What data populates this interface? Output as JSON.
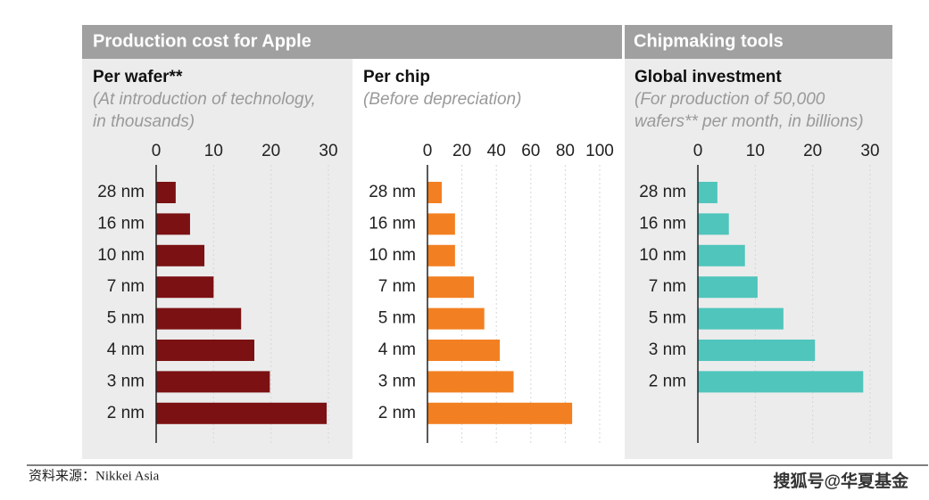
{
  "headers": [
    "Production cost for Apple",
    "Chipmaking tools"
  ],
  "chart_data": [
    {
      "type": "bar",
      "orientation": "horizontal",
      "title": "Per wafer**",
      "subtitle": [
        "(At introduction of technology,",
        "in thousands)"
      ],
      "categories": [
        "28 nm",
        "16 nm",
        "10 nm",
        "7 nm",
        "5 nm",
        "4 nm",
        "3 nm",
        "2 nm"
      ],
      "values": [
        3.4,
        5.9,
        8.4,
        10,
        14.8,
        17.1,
        19.8,
        29.7
      ],
      "color": "#7b1113",
      "xlim": [
        0,
        30
      ],
      "xticks": [
        0,
        10,
        20,
        30
      ],
      "grid": true
    },
    {
      "type": "bar",
      "orientation": "horizontal",
      "title": "Per chip",
      "subtitle": [
        "(Before depreciation)"
      ],
      "categories": [
        "28 nm",
        "16 nm",
        "10 nm",
        "7 nm",
        "5 nm",
        "4 nm",
        "3 nm",
        "2 nm"
      ],
      "values": [
        8.3,
        16,
        16,
        27,
        33,
        42,
        50,
        84
      ],
      "color": "#f28022",
      "xlim": [
        0,
        100
      ],
      "xticks": [
        0,
        20,
        40,
        60,
        80,
        100
      ],
      "grid": true
    },
    {
      "type": "bar",
      "orientation": "horizontal",
      "title": "Global investment",
      "subtitle": [
        "(For production of 50,000",
        "wafers** per month, in billions)"
      ],
      "categories": [
        "28 nm",
        "16 nm",
        "10 nm",
        "7 nm",
        "5 nm",
        "3 nm",
        "2 nm"
      ],
      "values": [
        3.4,
        5.4,
        8.2,
        10.4,
        14.9,
        20.4,
        28.8
      ],
      "color": "#4fc5bc",
      "xlim": [
        0,
        30
      ],
      "xticks": [
        0,
        10,
        20,
        30
      ],
      "grid": true
    }
  ],
  "footer": {
    "source": "资料来源：Nikkei Asia",
    "watermark": "搜狐号@华夏基金"
  }
}
